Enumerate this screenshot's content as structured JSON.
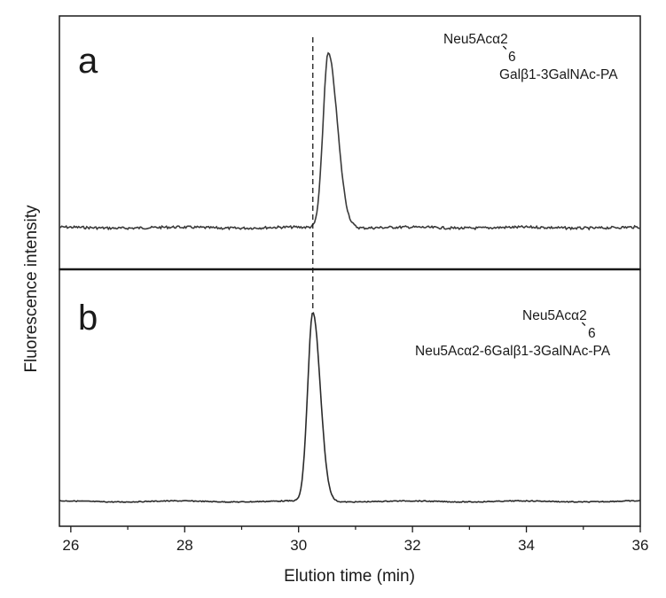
{
  "chart_data": {
    "type": "line",
    "xlabel": "Elution time (min)",
    "ylabel": "Fluorescence intensity",
    "xlim": [
      25.8,
      36
    ],
    "xticks": [
      26,
      28,
      30,
      32,
      34,
      36
    ],
    "reference_line_x": 30.25,
    "panels": [
      {
        "label": "a",
        "structure": {
          "branch": "Neu5Acα2",
          "linkage_mark": "、",
          "linkage_position": "6",
          "backbone": "Galβ1-3GalNAc-PA"
        },
        "series": [
          {
            "peak_time": 30.52,
            "peak_intensity": 1.0,
            "baseline": 0.02
          }
        ]
      },
      {
        "label": "b",
        "structure": {
          "branch": "Neu5Acα2",
          "linkage_mark": "、",
          "linkage_position": "6",
          "backbone": "Neu5Acα2-6Galβ1-3GalNAc-PA"
        },
        "series": [
          {
            "peak_time": 30.25,
            "peak_intensity": 1.0,
            "baseline": 0.02
          }
        ]
      }
    ]
  }
}
